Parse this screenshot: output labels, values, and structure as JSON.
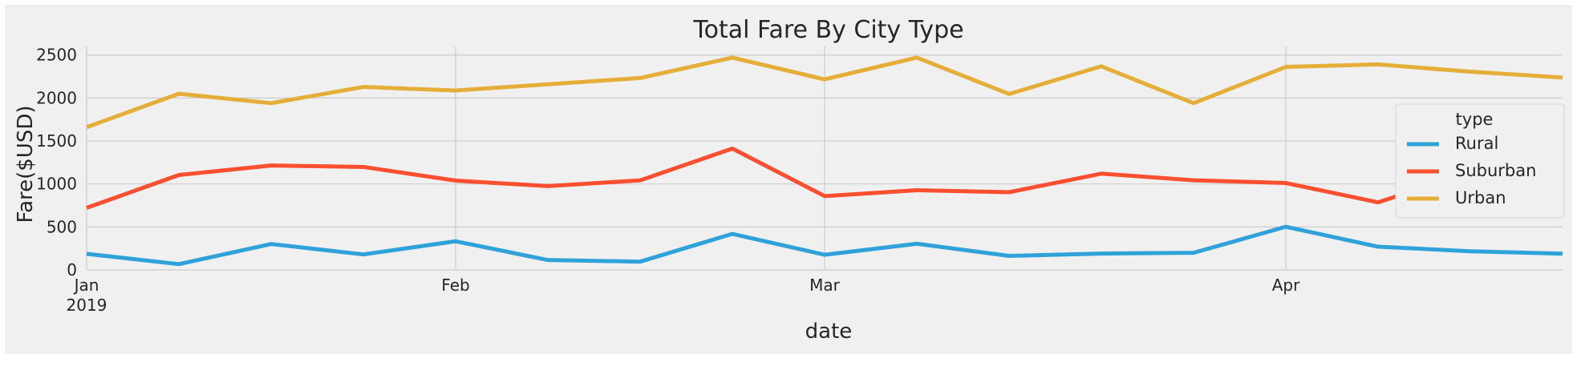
{
  "chart_data": {
    "type": "line",
    "title": "Total Fare By City Type",
    "xlabel": "date",
    "ylabel": "Fare($USD)",
    "x": [
      "2019-01-06",
      "2019-01-13",
      "2019-01-20",
      "2019-01-27",
      "2019-02-03",
      "2019-02-10",
      "2019-02-17",
      "2019-02-24",
      "2019-03-03",
      "2019-03-10",
      "2019-03-17",
      "2019-03-24",
      "2019-03-31",
      "2019-04-07",
      "2019-04-14",
      "2019-04-21",
      "2019-04-28"
    ],
    "xlim": [
      "2019-01-06",
      "2019-04-28"
    ],
    "ylim": [
      0,
      2600
    ],
    "yticks": [
      0,
      500,
      1000,
      1500,
      2000,
      2500
    ],
    "xticks": [
      {
        "date": "2019-01-06",
        "label": "Jan",
        "sublabel": "2019"
      },
      {
        "date": "2019-02-03",
        "label": "Feb",
        "sublabel": ""
      },
      {
        "date": "2019-03-03",
        "label": "Mar",
        "sublabel": ""
      },
      {
        "date": "2019-04-07",
        "label": "Apr",
        "sublabel": ""
      }
    ],
    "grid": true,
    "legend": {
      "title": "type",
      "placement": "right"
    },
    "series": [
      {
        "name": "Rural",
        "color": "#30a2da",
        "values": [
          187,
          67,
          301,
          180,
          333,
          115,
          96,
          419,
          176,
          304,
          163,
          190,
          199,
          502,
          270,
          217,
          189
        ]
      },
      {
        "name": "Suburban",
        "color": "#fc4f30",
        "values": [
          722,
          1104,
          1215,
          1198,
          1039,
          975,
          1042,
          1412,
          859,
          927,
          904,
          1120,
          1043,
          1011,
          786,
          1136,
          1357
        ]
      },
      {
        "name": "Urban",
        "color": "#e5ae38",
        "values": [
          1661,
          2050,
          1940,
          2129,
          2087,
          2160,
          2233,
          2470,
          2217,
          2470,
          2047,
          2369,
          1940,
          2362,
          2391,
          2306,
          2238
        ]
      }
    ]
  }
}
